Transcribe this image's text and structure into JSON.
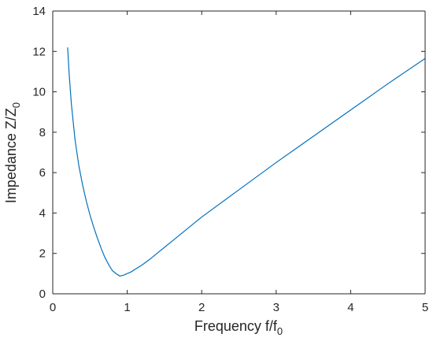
{
  "chart_data": {
    "type": "line",
    "title": "",
    "xlabel": "Frequency f/f",
    "xlabel_sub": "0",
    "ylabel": "Impedance Z/Z",
    "ylabel_sub": "0",
    "xlim": [
      0,
      5
    ],
    "ylim": [
      0,
      14
    ],
    "xticks": [
      0,
      1,
      2,
      3,
      4,
      5
    ],
    "yticks": [
      0,
      2,
      4,
      6,
      8,
      10,
      12,
      14
    ],
    "grid": false,
    "box": true,
    "series": [
      {
        "color": "#0072bd",
        "x": [
          0.2,
          0.22,
          0.25,
          0.3,
          0.35,
          0.4,
          0.45,
          0.5,
          0.55,
          0.6,
          0.65,
          0.7,
          0.75,
          0.8,
          0.85,
          0.9,
          0.95,
          1.0,
          1.05,
          1.1,
          1.2,
          1.3,
          1.4,
          1.5,
          1.6,
          1.8,
          2.0,
          2.5,
          3.0,
          3.5,
          4.0,
          4.5,
          5.0
        ],
        "y": [
          12.2,
          10.9,
          9.4,
          7.6,
          6.35,
          5.4,
          4.6,
          3.9,
          3.3,
          2.75,
          2.25,
          1.8,
          1.45,
          1.15,
          1.0,
          0.88,
          0.92,
          1.0,
          1.08,
          1.2,
          1.43,
          1.7,
          2.0,
          2.3,
          2.6,
          3.2,
          3.8,
          5.15,
          6.5,
          7.8,
          9.1,
          10.4,
          11.65
        ]
      }
    ]
  }
}
